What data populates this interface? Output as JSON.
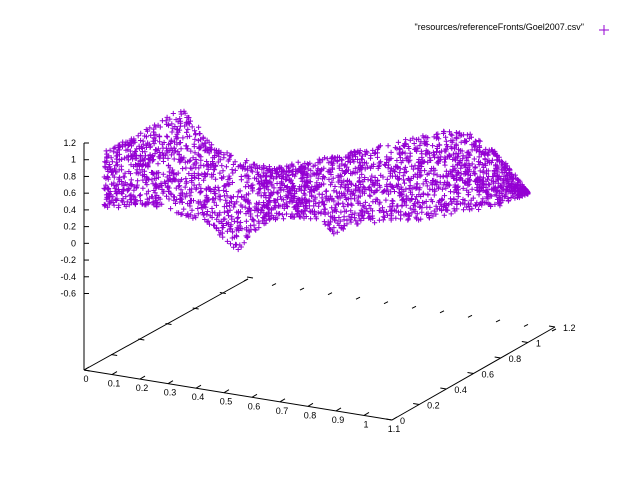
{
  "chart_data": {
    "type": "scatter",
    "projection": "3d",
    "title": "",
    "xlabel": "",
    "ylabel": "",
    "zlabel": "",
    "grid": false,
    "legend_position": "top-right",
    "series": [
      {
        "name": "\"resources/referenceFronts/Goel2007.csv\"",
        "marker": "plus",
        "color": "#9400d3"
      }
    ],
    "x_axis": {
      "range": [
        0,
        1.1
      ],
      "ticks": [
        "0",
        "0.1",
        "0.2",
        "0.3",
        "0.4",
        "0.5",
        "0.6",
        "0.7",
        "0.8",
        "0.9",
        "1",
        "1.1"
      ]
    },
    "y_axis": {
      "range": [
        0,
        1.2
      ],
      "ticks": [
        "0",
        "0.2",
        "0.4",
        "0.6",
        "0.8",
        "1",
        "1.2"
      ]
    },
    "z_axis": {
      "range": [
        -0.6,
        1.2
      ],
      "ticks": [
        "1.2",
        "1",
        "0.8",
        "0.6",
        "0.4",
        "0.2",
        "0",
        "-0.2",
        "-0.4",
        "-0.6"
      ]
    }
  }
}
